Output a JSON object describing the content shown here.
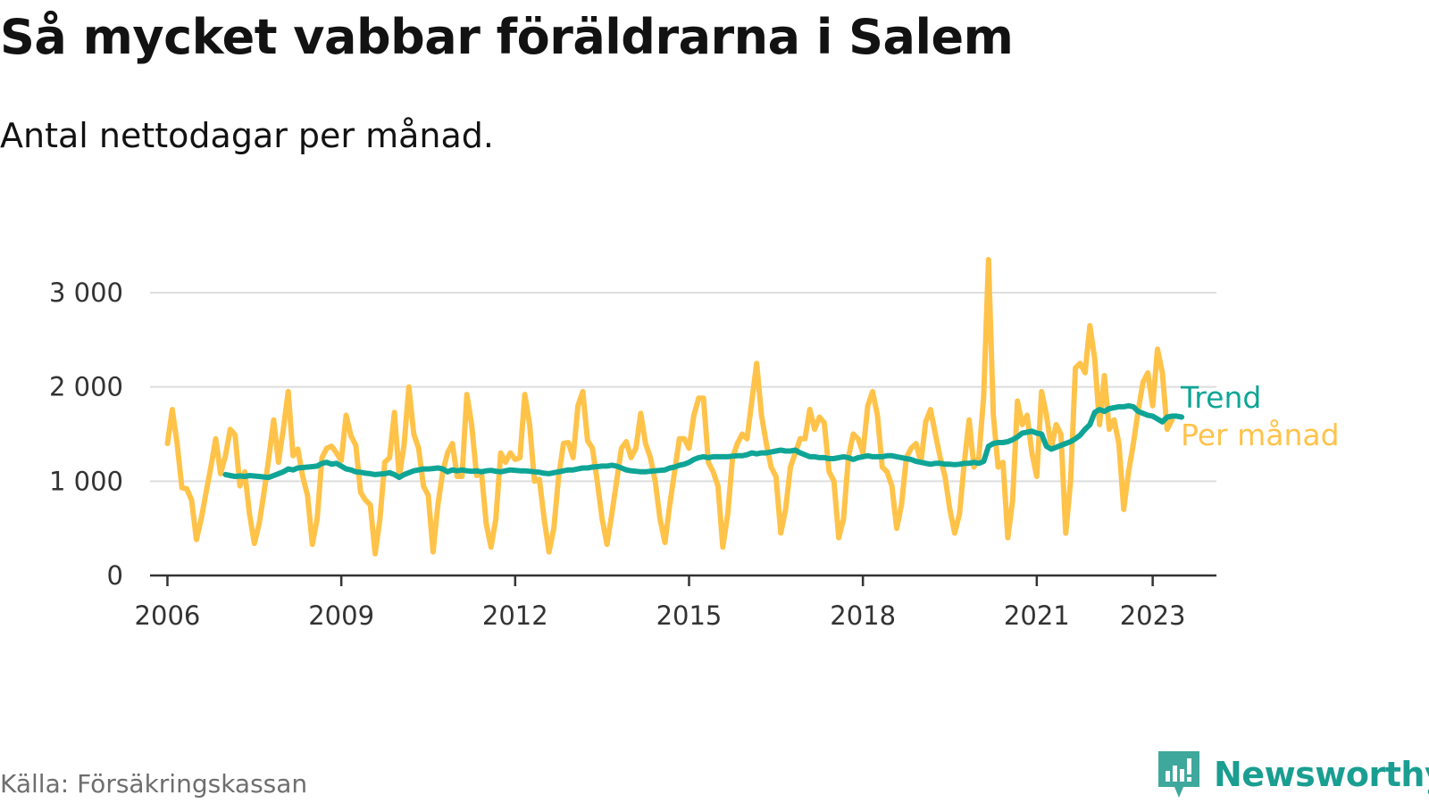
{
  "title": "Så mycket vabbar föräldrarna i Salem",
  "subtitle": "Antal nettodagar per månad.",
  "source": "Källa: Försäkringskassan",
  "brand": {
    "name": "Newsworthy",
    "icon": "newsworthy-logo-icon",
    "color": "#1a9e91"
  },
  "chart_data": {
    "type": "line",
    "title": "Så mycket vabbar föräldrarna i Salem",
    "subtitle": "Antal nettodagar per månad.",
    "xlabel": "",
    "ylabel": "",
    "xlim": [
      2005.7,
      2024.1
    ],
    "ylim": [
      0,
      3000
    ],
    "yticks": [
      0,
      1000,
      2000,
      3000
    ],
    "ytick_labels": [
      "0",
      "1 000",
      "2 000",
      "3 000"
    ],
    "xticks": [
      2006,
      2009,
      2012,
      2015,
      2018,
      2021,
      2023
    ],
    "xtick_labels": [
      "2006",
      "2009",
      "2012",
      "2015",
      "2018",
      "2021",
      "2023"
    ],
    "grid": "horizontal",
    "legend": "right-end-labels",
    "series": [
      {
        "name": "Per månad",
        "color": "#ffc34a",
        "x_start": "2006-01",
        "values": [
          1400,
          1760,
          1400,
          930,
          920,
          800,
          380,
          600,
          880,
          1150,
          1450,
          1080,
          1270,
          1550,
          1490,
          950,
          1100,
          650,
          340,
          550,
          880,
          1250,
          1650,
          1200,
          1550,
          1950,
          1270,
          1340,
          1050,
          850,
          330,
          600,
          1250,
          1350,
          1370,
          1300,
          1220,
          1700,
          1480,
          1380,
          880,
          800,
          750,
          230,
          600,
          1200,
          1250,
          1730,
          1050,
          1380,
          2000,
          1500,
          1350,
          950,
          850,
          250,
          750,
          1100,
          1300,
          1400,
          1050,
          1050,
          1920,
          1600,
          1060,
          1100,
          550,
          300,
          600,
          1300,
          1200,
          1300,
          1230,
          1250,
          1920,
          1600,
          1000,
          1020,
          600,
          250,
          500,
          1050,
          1400,
          1410,
          1250,
          1800,
          1950,
          1430,
          1350,
          1000,
          600,
          330,
          650,
          1000,
          1350,
          1420,
          1250,
          1350,
          1720,
          1400,
          1250,
          1000,
          600,
          350,
          750,
          1100,
          1450,
          1450,
          1350,
          1700,
          1880,
          1880,
          1200,
          1100,
          950,
          300,
          650,
          1250,
          1400,
          1500,
          1450,
          1850,
          2250,
          1700,
          1400,
          1150,
          1050,
          450,
          700,
          1150,
          1300,
          1450,
          1450,
          1760,
          1550,
          1680,
          1620,
          1100,
          1000,
          400,
          600,
          1250,
          1500,
          1450,
          1300,
          1800,
          1950,
          1700,
          1150,
          1100,
          950,
          500,
          750,
          1250,
          1350,
          1400,
          1200,
          1630,
          1760,
          1500,
          1250,
          1050,
          700,
          450,
          650,
          1200,
          1650,
          1150,
          1250,
          1900,
          3350,
          1700,
          1150,
          1200,
          400,
          800,
          1850,
          1600,
          1700,
          1300,
          1050,
          1950,
          1700,
          1350,
          1600,
          1500,
          450,
          1000,
          2200,
          2250,
          2150,
          2650,
          2300,
          1600,
          2120,
          1550,
          1650,
          1400,
          700,
          1100,
          1400,
          1750,
          2050,
          2150,
          1800,
          2400,
          2150,
          1550,
          1650
        ]
      },
      {
        "name": "Trend",
        "color": "#0fa596",
        "x_start": "2007-01",
        "values": [
          1070,
          1060,
          1050,
          1055,
          1050,
          1060,
          1055,
          1050,
          1045,
          1040,
          1060,
          1080,
          1100,
          1130,
          1120,
          1140,
          1145,
          1150,
          1155,
          1160,
          1190,
          1200,
          1180,
          1190,
          1160,
          1130,
          1120,
          1100,
          1095,
          1085,
          1080,
          1070,
          1075,
          1080,
          1090,
          1070,
          1040,
          1070,
          1090,
          1110,
          1120,
          1130,
          1130,
          1135,
          1140,
          1130,
          1100,
          1120,
          1110,
          1120,
          1110,
          1105,
          1110,
          1100,
          1110,
          1115,
          1105,
          1100,
          1110,
          1120,
          1115,
          1110,
          1110,
          1105,
          1100,
          1095,
          1085,
          1080,
          1090,
          1100,
          1110,
          1120,
          1120,
          1130,
          1140,
          1140,
          1150,
          1155,
          1160,
          1160,
          1170,
          1160,
          1140,
          1120,
          1110,
          1105,
          1100,
          1100,
          1105,
          1110,
          1115,
          1120,
          1140,
          1150,
          1170,
          1180,
          1200,
          1230,
          1250,
          1260,
          1250,
          1260,
          1260,
          1260,
          1260,
          1265,
          1270,
          1270,
          1280,
          1300,
          1290,
          1300,
          1300,
          1310,
          1320,
          1330,
          1320,
          1320,
          1330,
          1300,
          1280,
          1260,
          1260,
          1250,
          1250,
          1240,
          1240,
          1250,
          1260,
          1250,
          1230,
          1250,
          1260,
          1270,
          1260,
          1260,
          1260,
          1270,
          1270,
          1260,
          1250,
          1240,
          1230,
          1210,
          1200,
          1190,
          1180,
          1190,
          1190,
          1180,
          1180,
          1175,
          1180,
          1190,
          1190,
          1200,
          1190,
          1210,
          1370,
          1400,
          1410,
          1410,
          1420,
          1440,
          1470,
          1510,
          1520,
          1530,
          1510,
          1500,
          1370,
          1340,
          1360,
          1380,
          1400,
          1420,
          1450,
          1490,
          1550,
          1600,
          1730,
          1760,
          1740,
          1770,
          1780,
          1790,
          1790,
          1800,
          1790,
          1740,
          1720,
          1700,
          1690,
          1660,
          1630,
          1680,
          1690,
          1690,
          1680
        ]
      }
    ]
  }
}
